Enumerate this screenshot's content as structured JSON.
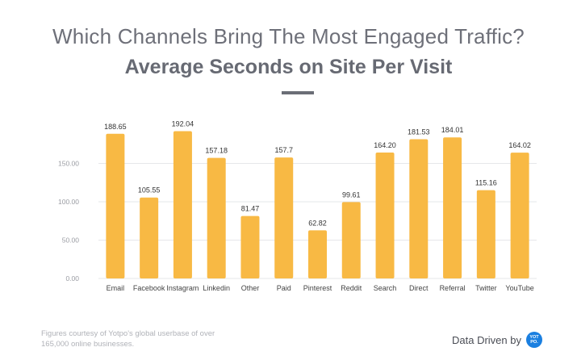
{
  "header": {
    "title": "Which Channels Bring The Most Engaged Traffic?",
    "subtitle": "Average Seconds on Site Per Visit"
  },
  "chart_data": {
    "type": "bar",
    "title": "Average Seconds on Site Per Visit",
    "xlabel": "",
    "ylabel": "",
    "categories": [
      "Email",
      "Facebook",
      "Instagram",
      "Linkedin",
      "Other",
      "Paid",
      "Pinterest",
      "Reddit",
      "Search",
      "Direct",
      "Referral",
      "Twitter",
      "YouTube"
    ],
    "values": [
      188.65,
      105.55,
      192.04,
      157.18,
      81.47,
      157.7,
      62.82,
      99.61,
      164.2,
      181.53,
      184.01,
      115.16,
      164.02
    ],
    "value_labels": [
      "188.65",
      "105.55",
      "192.04",
      "157.18",
      "81.47",
      "157.7",
      "62.82",
      "99.61",
      "164.20",
      "181.53",
      "184.01",
      "115.16",
      "164.02"
    ],
    "yticks": [
      0,
      50,
      100,
      150
    ],
    "ytick_labels": [
      "0.00",
      "50.00",
      "100.00",
      "150.00"
    ],
    "ylim": [
      0,
      200
    ],
    "grid": true,
    "bar_color": "#f8b944"
  },
  "footer": {
    "note": "Figures courtesy of Yotpo's global userbase of over 165,000 online businesses.",
    "brand_text": "Data Driven by",
    "logo_top": "YOT",
    "logo_bottom": "PO."
  }
}
